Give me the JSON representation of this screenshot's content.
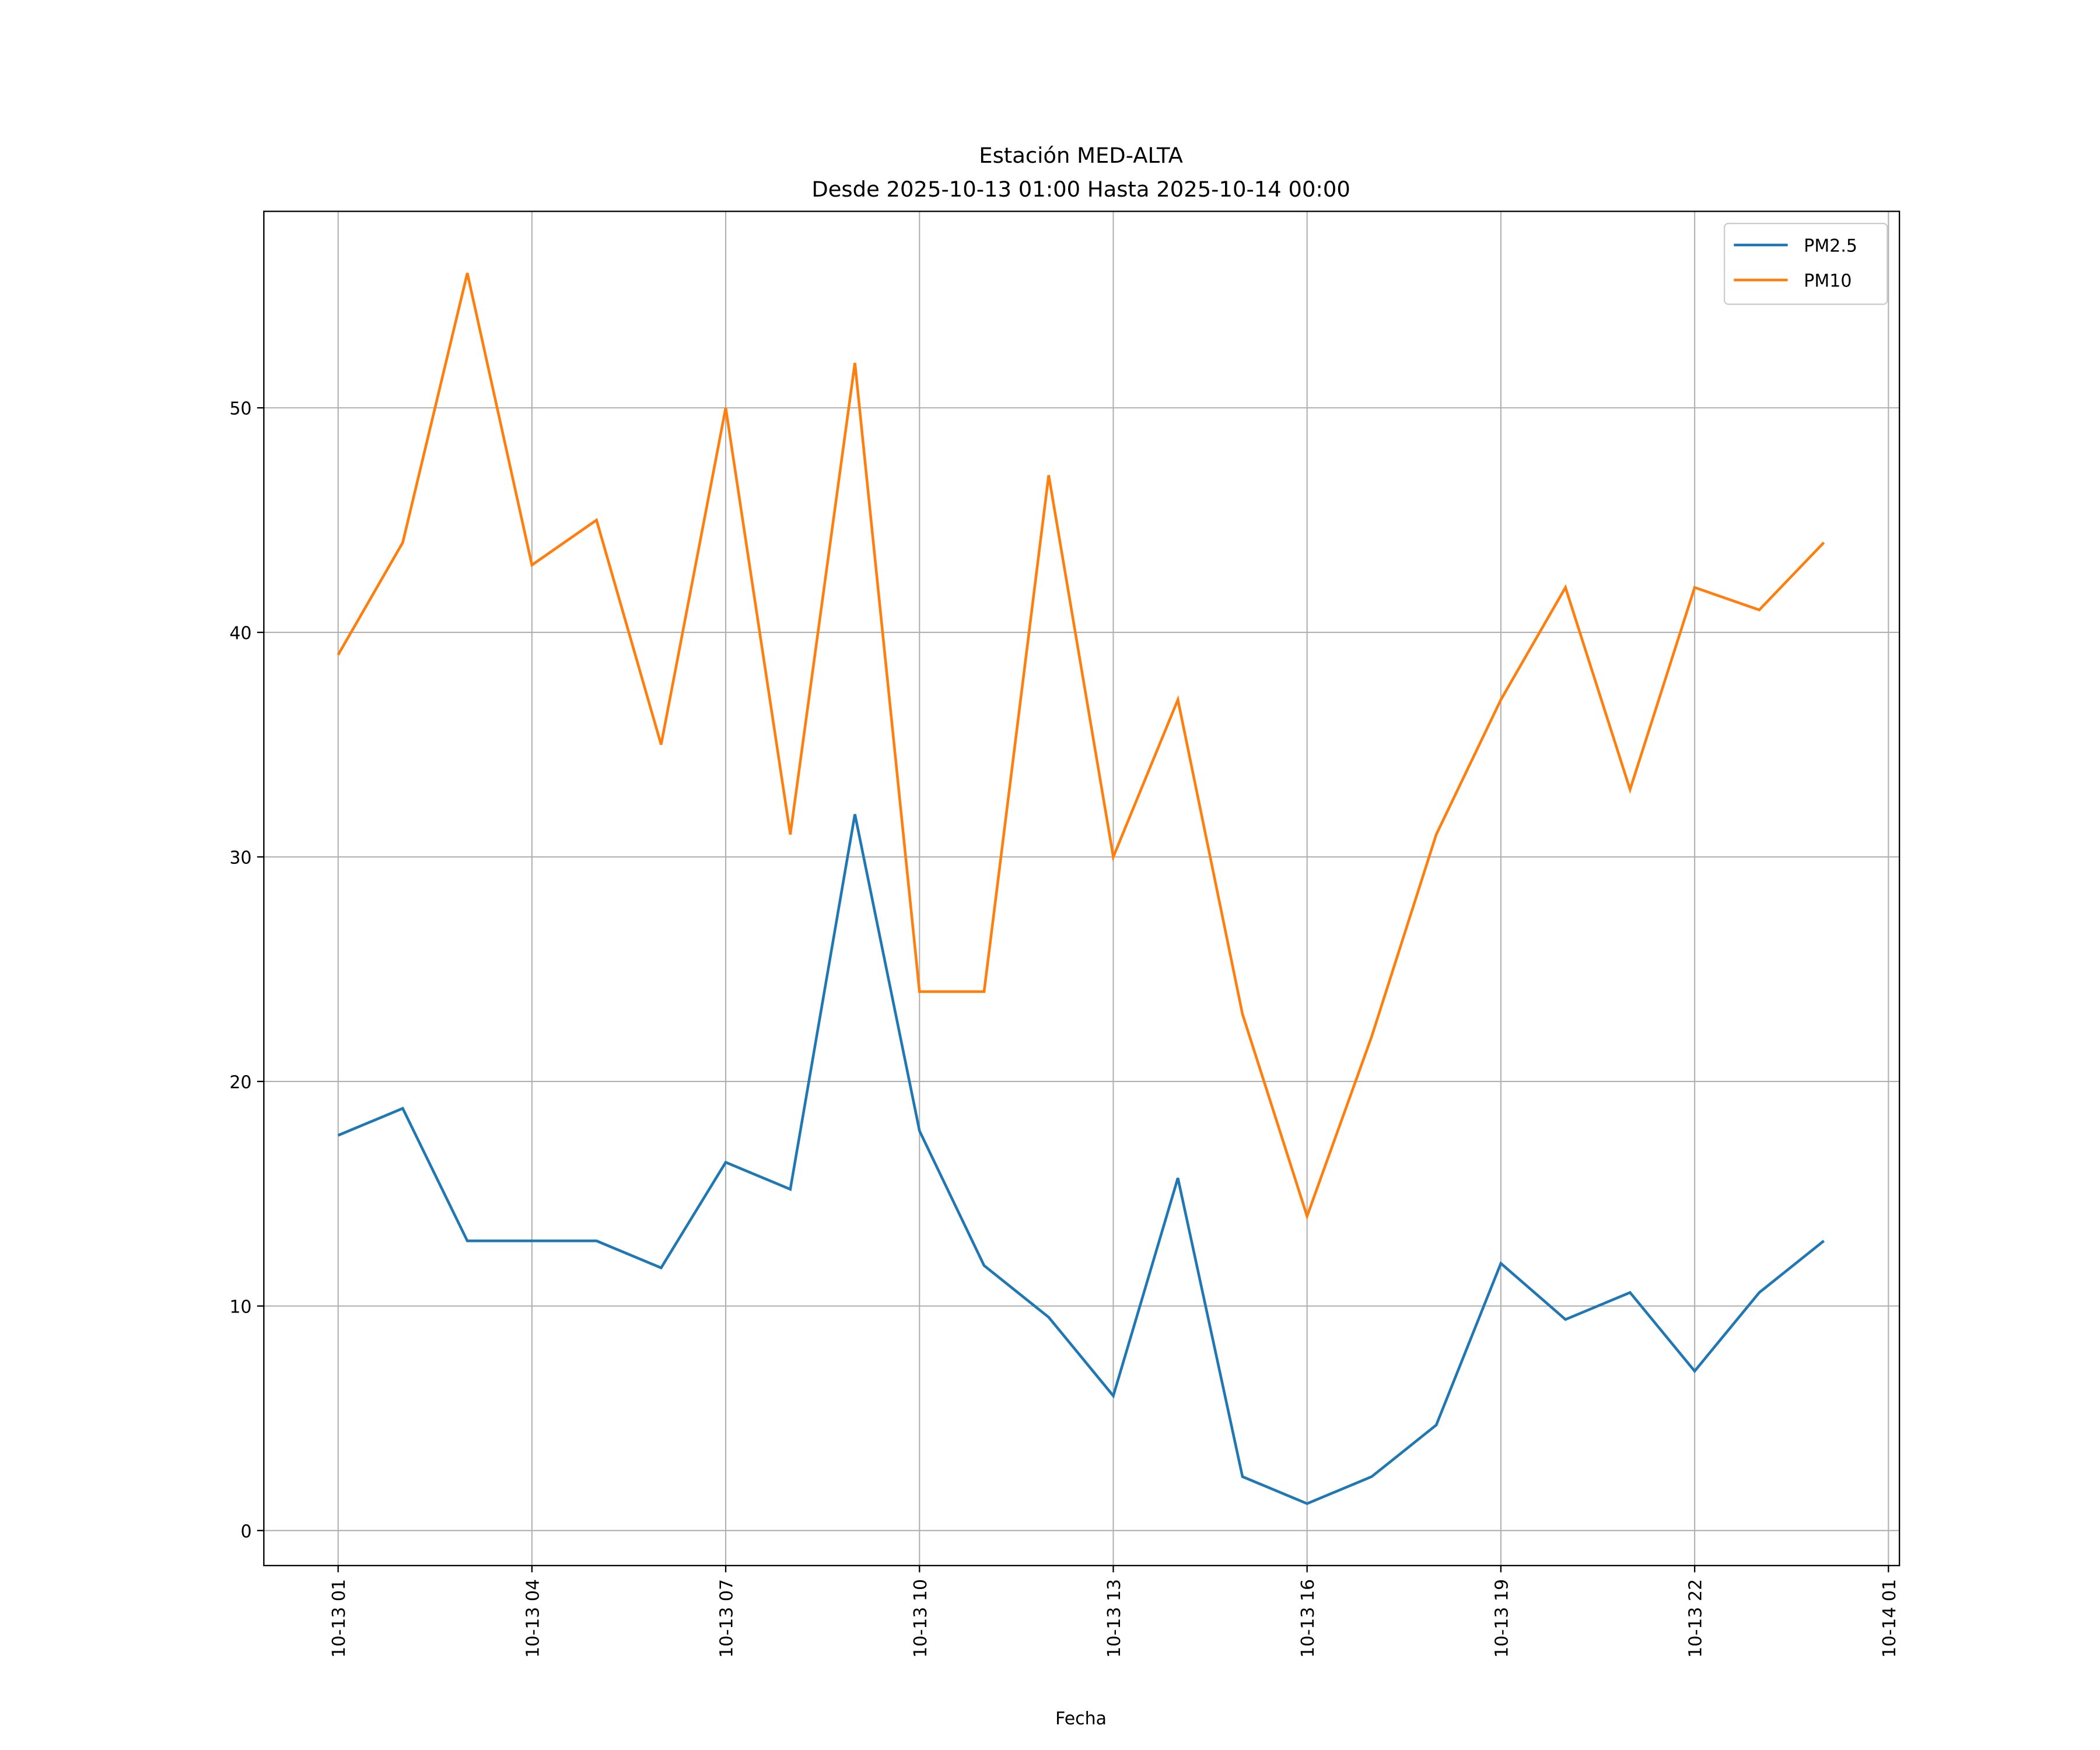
{
  "chart_data": {
    "type": "line",
    "title": "Estación MED-ALTA",
    "subtitle": "Desde 2025-10-13 01:00 Hasta 2025-10-14 00:00",
    "xlabel": "Fecha",
    "ylabel": "",
    "x_hours_from_start": [
      0,
      1,
      2,
      3,
      4,
      5,
      6,
      7,
      8,
      9,
      10,
      11,
      12,
      13,
      14,
      15,
      16,
      17,
      18,
      19,
      20,
      21,
      22,
      23
    ],
    "x_tick_labels": [
      "10-13 01",
      "10-13 04",
      "10-13 07",
      "10-13 10",
      "10-13 13",
      "10-13 16",
      "10-13 19",
      "10-13 22",
      "10-14 01"
    ],
    "x_tick_hours": [
      0,
      3,
      6,
      9,
      12,
      15,
      18,
      21,
      24
    ],
    "y_ticks": [
      0,
      10,
      20,
      30,
      40,
      50
    ],
    "y_tick_labels": [
      "0",
      "10",
      "20",
      "30",
      "40",
      "50"
    ],
    "xlim_hours": [
      -1.15,
      24.17
    ],
    "ylim": [
      -1.56,
      58.75
    ],
    "grid": true,
    "legend_position": "top-right",
    "series": [
      {
        "name": "PM2.5",
        "color": "#1f77b4",
        "values": [
          17.6,
          18.8,
          12.9,
          12.9,
          12.9,
          11.7,
          16.4,
          15.2,
          31.9,
          17.8,
          11.8,
          9.5,
          6.0,
          15.7,
          2.4,
          1.2,
          2.4,
          4.7,
          11.9,
          9.4,
          10.6,
          7.1,
          10.6,
          12.9
        ]
      },
      {
        "name": "PM10",
        "color": "#ff7f0e",
        "values": [
          39,
          44,
          56,
          43,
          45,
          35,
          50,
          31,
          52,
          24,
          24,
          47,
          30,
          37,
          23,
          14,
          22,
          31,
          37,
          42,
          33,
          42,
          41,
          44
        ]
      }
    ]
  }
}
